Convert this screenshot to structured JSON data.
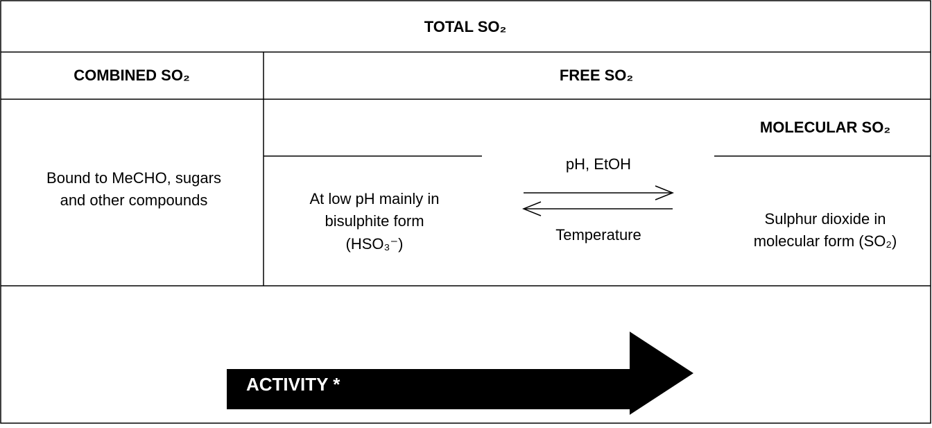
{
  "header": {
    "title": "TOTAL SO₂"
  },
  "columns": {
    "combined": "COMBINED SO₂",
    "free": "FREE SO₂"
  },
  "combined_text": [
    "Bound to MeCHO, sugars",
    "and other compounds"
  ],
  "bisulphite_text": [
    "At low pH mainly in",
    "bisulphite form",
    "(HSO₃⁻)"
  ],
  "molecular": {
    "title": "MOLECULAR SO₂",
    "text": [
      "Sulphur dioxide in",
      "molecular form (SO₂)"
    ]
  },
  "equilibrium": {
    "forward": "pH, EtOH",
    "reverse": "Temperature"
  },
  "activity": {
    "label": "ACTIVITY *"
  }
}
